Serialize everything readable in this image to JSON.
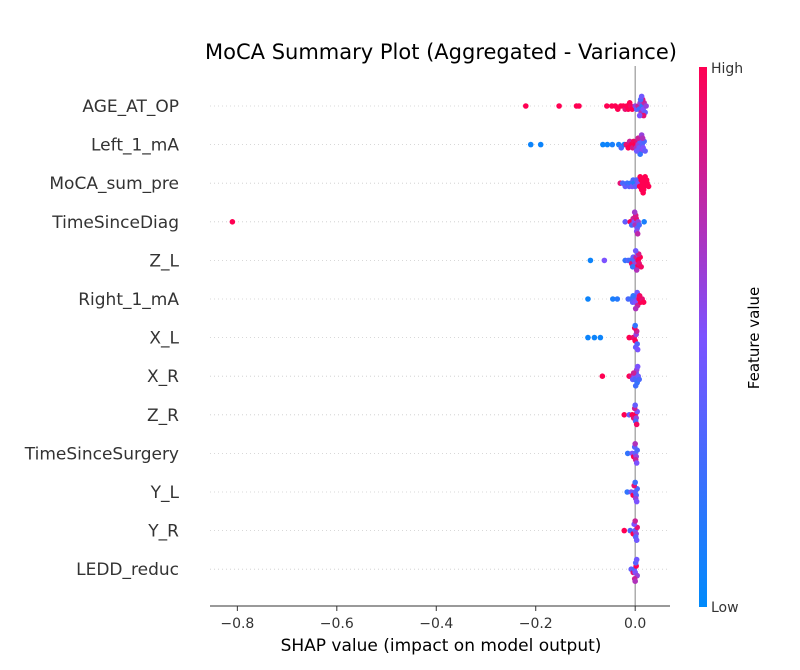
{
  "chart_data": {
    "type": "scatter",
    "subtype": "shap-beeswarm",
    "title": "MoCA Summary Plot (Aggregated - Variance)",
    "xlabel": "SHAP value (impact on model output)",
    "xlim": [
      -0.855,
      0.07
    ],
    "x_ticks": [
      -0.8,
      -0.6,
      -0.4,
      -0.2,
      0.0
    ],
    "x_tick_labels": [
      "−0.8",
      "−0.6",
      "−0.4",
      "−0.2",
      "0.0"
    ],
    "zero_line": 0.0,
    "grid": false,
    "colorbar": {
      "label": "Feature value",
      "high_label": "High",
      "low_label": "Low",
      "low_color": "#008afb",
      "mid_color": "#7c52ff",
      "high_color": "#ff0052"
    },
    "features": [
      {
        "name": "AGE_AT_OP",
        "points": [
          {
            "x": -0.22,
            "c": 1
          },
          {
            "x": -0.153,
            "c": 1
          },
          {
            "x": -0.118,
            "c": 1
          },
          {
            "x": -0.113,
            "c": 1
          },
          {
            "x": -0.057,
            "c": 1
          },
          {
            "x": -0.047,
            "c": 1
          },
          {
            "x": -0.04,
            "c": 1
          },
          {
            "x": -0.035,
            "c": 1
          },
          {
            "x": -0.029,
            "c": 1
          },
          {
            "x": -0.024,
            "c": 1
          },
          {
            "x": -0.02,
            "c": 0.9
          },
          {
            "x": -0.017,
            "c": 1
          },
          {
            "x": -0.014,
            "c": 1
          },
          {
            "x": -0.011,
            "c": 1
          },
          {
            "x": -0.009,
            "c": 0.95
          },
          {
            "x": -0.006,
            "c": 1
          },
          {
            "x": 0.0,
            "c": 0.6
          },
          {
            "x": 0.003,
            "c": 0.4
          },
          {
            "x": 0.006,
            "c": 0.8
          },
          {
            "x": 0.008,
            "c": 0.3
          },
          {
            "x": 0.01,
            "c": 0.6
          },
          {
            "x": 0.012,
            "c": 0.7
          },
          {
            "x": 0.014,
            "c": 0.2
          },
          {
            "x": 0.016,
            "c": 0.5
          },
          {
            "x": 0.018,
            "c": 0.75
          },
          {
            "x": 0.02,
            "c": 0.4
          },
          {
            "x": 0.022,
            "c": 0.6
          },
          {
            "x": 0.015,
            "c": 0.85
          },
          {
            "x": 0.011,
            "c": 0.3
          },
          {
            "x": 0.017,
            "c": 0.9
          },
          {
            "x": 0.009,
            "c": 0.5
          },
          {
            "x": 0.013,
            "c": 0.45
          }
        ]
      },
      {
        "name": "Left_1_mA",
        "points": [
          {
            "x": -0.21,
            "c": 0.05
          },
          {
            "x": -0.19,
            "c": 0.05
          },
          {
            "x": -0.065,
            "c": 0.05
          },
          {
            "x": -0.056,
            "c": 0.05
          },
          {
            "x": -0.046,
            "c": 0.1
          },
          {
            "x": -0.033,
            "c": 0.1
          },
          {
            "x": -0.028,
            "c": 0.3
          },
          {
            "x": -0.022,
            "c": 0.1
          },
          {
            "x": -0.018,
            "c": 0.9
          },
          {
            "x": -0.014,
            "c": 1
          },
          {
            "x": -0.011,
            "c": 0.8
          },
          {
            "x": -0.008,
            "c": 1
          },
          {
            "x": -0.005,
            "c": 0.85
          },
          {
            "x": -0.003,
            "c": 0.95
          },
          {
            "x": 0.0,
            "c": 1
          },
          {
            "x": 0.002,
            "c": 0.7
          },
          {
            "x": 0.004,
            "c": 0.9
          },
          {
            "x": 0.006,
            "c": 0.6
          },
          {
            "x": 0.008,
            "c": 0.45
          },
          {
            "x": 0.01,
            "c": 0.4
          },
          {
            "x": 0.012,
            "c": 0.55
          },
          {
            "x": 0.014,
            "c": 0.35
          },
          {
            "x": 0.016,
            "c": 0.5
          },
          {
            "x": 0.018,
            "c": 0.3
          },
          {
            "x": 0.02,
            "c": 0.4
          },
          {
            "x": 0.006,
            "c": 0.8
          },
          {
            "x": 0.01,
            "c": 0.2
          },
          {
            "x": 0.013,
            "c": 0.6
          },
          {
            "x": 0.003,
            "c": 0.45
          },
          {
            "x": 0.015,
            "c": 0.7
          }
        ]
      },
      {
        "name": "MoCA_sum_pre",
        "points": [
          {
            "x": -0.03,
            "c": 0.9
          },
          {
            "x": -0.025,
            "c": 0.3
          },
          {
            "x": -0.02,
            "c": 0.4
          },
          {
            "x": -0.016,
            "c": 0.25
          },
          {
            "x": -0.012,
            "c": 0.35
          },
          {
            "x": -0.009,
            "c": 0.2
          },
          {
            "x": -0.006,
            "c": 0.5
          },
          {
            "x": -0.004,
            "c": 0.3
          },
          {
            "x": -0.002,
            "c": 0.15
          },
          {
            "x": 0.0,
            "c": 0.4
          },
          {
            "x": 0.003,
            "c": 0.35
          },
          {
            "x": 0.006,
            "c": 0.5
          },
          {
            "x": 0.009,
            "c": 1
          },
          {
            "x": 0.012,
            "c": 1
          },
          {
            "x": 0.015,
            "c": 1
          },
          {
            "x": 0.018,
            "c": 1
          },
          {
            "x": 0.021,
            "c": 1
          },
          {
            "x": 0.024,
            "c": 1
          },
          {
            "x": 0.027,
            "c": 1
          },
          {
            "x": 0.013,
            "c": 1
          },
          {
            "x": 0.017,
            "c": 1
          },
          {
            "x": 0.02,
            "c": 1
          },
          {
            "x": 0.01,
            "c": 1
          },
          {
            "x": 0.023,
            "c": 1
          },
          {
            "x": 0.016,
            "c": 1
          }
        ]
      },
      {
        "name": "TimeSinceDiag",
        "points": [
          {
            "x": -0.81,
            "c": 1
          },
          {
            "x": -0.02,
            "c": 0.4
          },
          {
            "x": -0.01,
            "c": 1
          },
          {
            "x": -0.007,
            "c": 0.3
          },
          {
            "x": -0.004,
            "c": 0.8
          },
          {
            "x": -0.002,
            "c": 0.5
          },
          {
            "x": 0.0,
            "c": 0.7
          },
          {
            "x": 0.002,
            "c": 0.9
          },
          {
            "x": 0.004,
            "c": 0.4
          },
          {
            "x": 0.006,
            "c": 0.6
          },
          {
            "x": 0.008,
            "c": 0.3
          },
          {
            "x": 0.018,
            "c": 0.1
          },
          {
            "x": 0.001,
            "c": 0.85
          },
          {
            "x": 0.003,
            "c": 0.55
          },
          {
            "x": -0.001,
            "c": 0.65
          },
          {
            "x": 0.005,
            "c": 0.75
          }
        ]
      },
      {
        "name": "Z_L",
        "points": [
          {
            "x": -0.09,
            "c": 0.05
          },
          {
            "x": -0.062,
            "c": 0.5
          },
          {
            "x": -0.02,
            "c": 0.2
          },
          {
            "x": -0.014,
            "c": 0.35
          },
          {
            "x": -0.01,
            "c": 0.25
          },
          {
            "x": -0.007,
            "c": 0.9
          },
          {
            "x": -0.004,
            "c": 0.4
          },
          {
            "x": -0.002,
            "c": 0.3
          },
          {
            "x": 0.0,
            "c": 0.6
          },
          {
            "x": 0.002,
            "c": 0.8
          },
          {
            "x": 0.004,
            "c": 1
          },
          {
            "x": 0.006,
            "c": 1
          },
          {
            "x": 0.008,
            "c": 0.9
          },
          {
            "x": 0.01,
            "c": 1
          },
          {
            "x": 0.012,
            "c": 0.95
          },
          {
            "x": 0.005,
            "c": 0.5
          },
          {
            "x": -0.005,
            "c": 0.2
          },
          {
            "x": 0.003,
            "c": 0.7
          },
          {
            "x": 0.007,
            "c": 0.85
          },
          {
            "x": 0.001,
            "c": 0.45
          }
        ]
      },
      {
        "name": "Right_1_mA",
        "points": [
          {
            "x": -0.095,
            "c": 0.05
          },
          {
            "x": -0.045,
            "c": 0.1
          },
          {
            "x": -0.036,
            "c": 0.15
          },
          {
            "x": -0.014,
            "c": 0.3
          },
          {
            "x": -0.009,
            "c": 0.25
          },
          {
            "x": -0.005,
            "c": 0.4
          },
          {
            "x": -0.002,
            "c": 0.35
          },
          {
            "x": 0.0,
            "c": 0.5
          },
          {
            "x": 0.002,
            "c": 0.6
          },
          {
            "x": 0.005,
            "c": 0.8
          },
          {
            "x": 0.008,
            "c": 1
          },
          {
            "x": 0.011,
            "c": 1
          },
          {
            "x": 0.014,
            "c": 0.9
          },
          {
            "x": 0.017,
            "c": 1
          },
          {
            "x": 0.004,
            "c": 0.45
          },
          {
            "x": -0.004,
            "c": 0.2
          },
          {
            "x": 0.001,
            "c": 0.7
          },
          {
            "x": 0.009,
            "c": 0.95
          }
        ]
      },
      {
        "name": "X_L",
        "points": [
          {
            "x": -0.095,
            "c": 0.05
          },
          {
            "x": -0.082,
            "c": 0.05
          },
          {
            "x": -0.07,
            "c": 0.05
          },
          {
            "x": -0.012,
            "c": 1
          },
          {
            "x": -0.004,
            "c": 1
          },
          {
            "x": -0.002,
            "c": 0.9
          },
          {
            "x": 0.0,
            "c": 1
          },
          {
            "x": 0.002,
            "c": 0.6
          },
          {
            "x": 0.004,
            "c": 0.3
          },
          {
            "x": 0.003,
            "c": 0.8
          },
          {
            "x": 0.001,
            "c": 0.4
          },
          {
            "x": -0.001,
            "c": 0.95
          },
          {
            "x": 0.005,
            "c": 0.5
          },
          {
            "x": 0.0,
            "c": 0.2
          }
        ]
      },
      {
        "name": "X_R",
        "points": [
          {
            "x": -0.066,
            "c": 1
          },
          {
            "x": -0.012,
            "c": 1
          },
          {
            "x": -0.008,
            "c": 0.9
          },
          {
            "x": -0.005,
            "c": 0.4
          },
          {
            "x": -0.002,
            "c": 0.5
          },
          {
            "x": 0.0,
            "c": 0.3
          },
          {
            "x": 0.002,
            "c": 0.35
          },
          {
            "x": 0.004,
            "c": 0.2
          },
          {
            "x": 0.006,
            "c": 0.45
          },
          {
            "x": 0.008,
            "c": 0.3
          },
          {
            "x": 0.003,
            "c": 0.6
          },
          {
            "x": -0.003,
            "c": 0.8
          },
          {
            "x": 0.001,
            "c": 0.25
          },
          {
            "x": 0.005,
            "c": 0.5
          }
        ]
      },
      {
        "name": "Z_R",
        "points": [
          {
            "x": -0.022,
            "c": 1
          },
          {
            "x": -0.012,
            "c": 0.4
          },
          {
            "x": -0.006,
            "c": 1
          },
          {
            "x": -0.003,
            "c": 0.9
          },
          {
            "x": 0.0,
            "c": 1
          },
          {
            "x": 0.002,
            "c": 0.6
          },
          {
            "x": 0.004,
            "c": 0.5
          },
          {
            "x": 0.001,
            "c": 0.3
          },
          {
            "x": -0.001,
            "c": 0.8
          },
          {
            "x": 0.003,
            "c": 0.95
          },
          {
            "x": 0.0,
            "c": 0.4
          }
        ]
      },
      {
        "name": "TimeSinceSurgery",
        "points": [
          {
            "x": -0.015,
            "c": 0.2
          },
          {
            "x": -0.006,
            "c": 0.5
          },
          {
            "x": -0.003,
            "c": 1
          },
          {
            "x": 0.0,
            "c": 0.4
          },
          {
            "x": 0.002,
            "c": 0.6
          },
          {
            "x": 0.004,
            "c": 0.3
          },
          {
            "x": 0.001,
            "c": 0.8
          },
          {
            "x": -0.001,
            "c": 0.35
          },
          {
            "x": 0.003,
            "c": 0.5
          },
          {
            "x": 0.0,
            "c": 0.7
          }
        ]
      },
      {
        "name": "Y_L",
        "points": [
          {
            "x": -0.016,
            "c": 0.2
          },
          {
            "x": -0.008,
            "c": 0.45
          },
          {
            "x": -0.004,
            "c": 1
          },
          {
            "x": 0.0,
            "c": 0.4
          },
          {
            "x": 0.002,
            "c": 0.35
          },
          {
            "x": 0.004,
            "c": 0.3
          },
          {
            "x": 0.001,
            "c": 0.6
          },
          {
            "x": -0.002,
            "c": 0.9
          },
          {
            "x": 0.003,
            "c": 0.5
          },
          {
            "x": 0.0,
            "c": 0.25
          }
        ]
      },
      {
        "name": "Y_R",
        "points": [
          {
            "x": -0.022,
            "c": 1
          },
          {
            "x": -0.01,
            "c": 0.3
          },
          {
            "x": -0.004,
            "c": 1
          },
          {
            "x": 0.0,
            "c": 0.4
          },
          {
            "x": 0.002,
            "c": 0.6
          },
          {
            "x": 0.004,
            "c": 0.9
          },
          {
            "x": 0.001,
            "c": 0.35
          },
          {
            "x": -0.002,
            "c": 0.5
          },
          {
            "x": 0.003,
            "c": 0.45
          },
          {
            "x": 0.0,
            "c": 0.8
          }
        ]
      },
      {
        "name": "LEDD_reduc",
        "points": [
          {
            "x": -0.008,
            "c": 0.4
          },
          {
            "x": -0.004,
            "c": 0.9
          },
          {
            "x": -0.002,
            "c": 0.3
          },
          {
            "x": 0.0,
            "c": 0.5
          },
          {
            "x": 0.002,
            "c": 1
          },
          {
            "x": 0.004,
            "c": 0.6
          },
          {
            "x": 0.001,
            "c": 0.35
          },
          {
            "x": -0.001,
            "c": 0.8
          },
          {
            "x": 0.003,
            "c": 0.45
          },
          {
            "x": 0.0,
            "c": 0.7
          }
        ]
      }
    ]
  }
}
